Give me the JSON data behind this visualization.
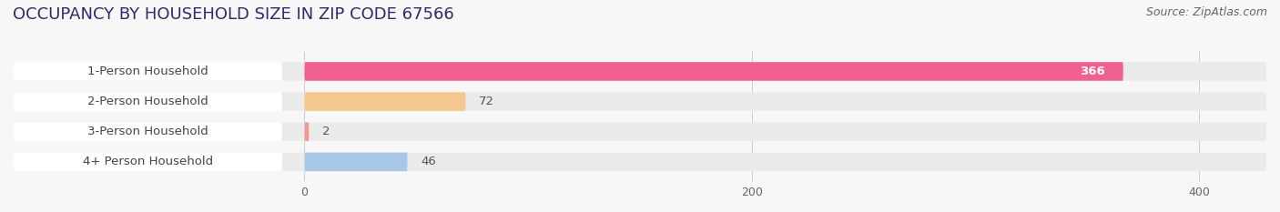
{
  "title": "OCCUPANCY BY HOUSEHOLD SIZE IN ZIP CODE 67566",
  "source": "Source: ZipAtlas.com",
  "categories": [
    "1-Person Household",
    "2-Person Household",
    "3-Person Household",
    "4+ Person Household"
  ],
  "values": [
    366,
    72,
    2,
    46
  ],
  "bar_colors": [
    "#f06090",
    "#f5c890",
    "#f09898",
    "#a8c8e8"
  ],
  "value_colors": [
    "#ffffff",
    "#555555",
    "#555555",
    "#555555"
  ],
  "value_inside": [
    true,
    false,
    false,
    false
  ],
  "xlim": [
    -10,
    430
  ],
  "xlim_left": -130,
  "xticks": [
    0,
    200,
    400
  ],
  "background_color": "#f7f7f7",
  "bar_bg_color": "#ebebeb",
  "title_fontsize": 13,
  "source_fontsize": 9,
  "label_fontsize": 9.5,
  "value_fontsize": 9.5,
  "bar_height": 0.62
}
